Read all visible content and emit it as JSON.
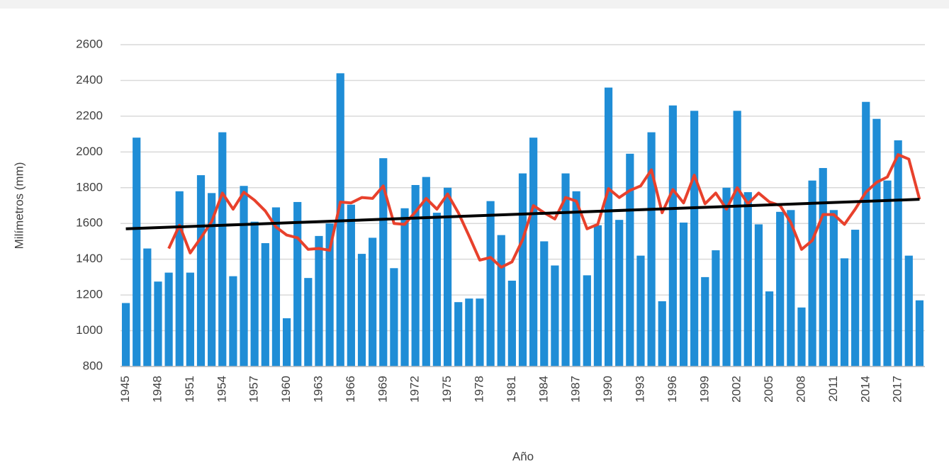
{
  "chart_data": {
    "type": "bar",
    "y_label": "Milímetros (mm)",
    "x_label": "Año",
    "categories": [
      "1945",
      null,
      null,
      "1948",
      null,
      null,
      "1951",
      null,
      null,
      "1954",
      null,
      null,
      "1957",
      null,
      null,
      "1960",
      null,
      null,
      "1963",
      null,
      null,
      "1966",
      null,
      null,
      "1969",
      null,
      null,
      "1972",
      null,
      null,
      "1975",
      null,
      null,
      "1978",
      null,
      null,
      "1981",
      null,
      null,
      "1984",
      null,
      null,
      "1987",
      null,
      null,
      "1990",
      null,
      null,
      "1993",
      null,
      null,
      "1996",
      null,
      null,
      "1999",
      null,
      null,
      "2002",
      null,
      null,
      "2005",
      null,
      null,
      "2008",
      null,
      null,
      "2011",
      null,
      null,
      "2014",
      null,
      null,
      "2017",
      null,
      null
    ],
    "series": [
      {
        "type": "bar",
        "color": "#1f8dd6",
        "values": [
          1155,
          2080,
          1460,
          1275,
          1325,
          1780,
          1325,
          1870,
          1770,
          2110,
          1305,
          1810,
          1610,
          1490,
          1690,
          1070,
          1720,
          1295,
          1530,
          1600,
          2440,
          1705,
          1430,
          1520,
          1965,
          1350,
          1685,
          1815,
          1860,
          1660,
          1800,
          1160,
          1180,
          1180,
          1725,
          1535,
          1280,
          1880,
          2080,
          1500,
          1365,
          1880,
          1780,
          1310,
          1590,
          2360,
          1620,
          1990,
          1420,
          2110,
          1165,
          2260,
          1605,
          2230,
          1300,
          1450,
          1800,
          2230,
          1775,
          1595,
          1220,
          1665,
          1675,
          1130,
          1840,
          1910,
          1675,
          1405,
          1565,
          2280,
          2185,
          1840,
          2065,
          1420,
          1170
        ]
      },
      {
        "type": "line",
        "color": "#e8412c",
        "values": [
          null,
          null,
          null,
          null,
          1460,
          1590,
          1435,
          1520,
          1610,
          1770,
          1680,
          1775,
          1730,
          1670,
          1580,
          1535,
          1520,
          1455,
          1460,
          1450,
          1720,
          1715,
          1745,
          1740,
          1810,
          1600,
          1595,
          1665,
          1740,
          1680,
          1765,
          1660,
          1530,
          1395,
          1410,
          1355,
          1385,
          1510,
          1700,
          1660,
          1625,
          1745,
          1725,
          1570,
          1595,
          1795,
          1745,
          1785,
          1810,
          1900,
          1660,
          1790,
          1715,
          1870,
          1710,
          1770,
          1680,
          1800,
          1710,
          1770,
          1720,
          1700,
          1605,
          1455,
          1505,
          1650,
          1650,
          1595,
          1680,
          1775,
          1830,
          1860,
          1985,
          1960,
          1735
        ]
      }
    ],
    "trendline": {
      "color": "#000000",
      "values": [
        1570,
        1735
      ]
    },
    "ylim": [
      800,
      2600
    ],
    "yticks": [
      800,
      1000,
      1200,
      1400,
      1600,
      1800,
      2000,
      2200,
      2400,
      2600
    ],
    "grid": true
  }
}
